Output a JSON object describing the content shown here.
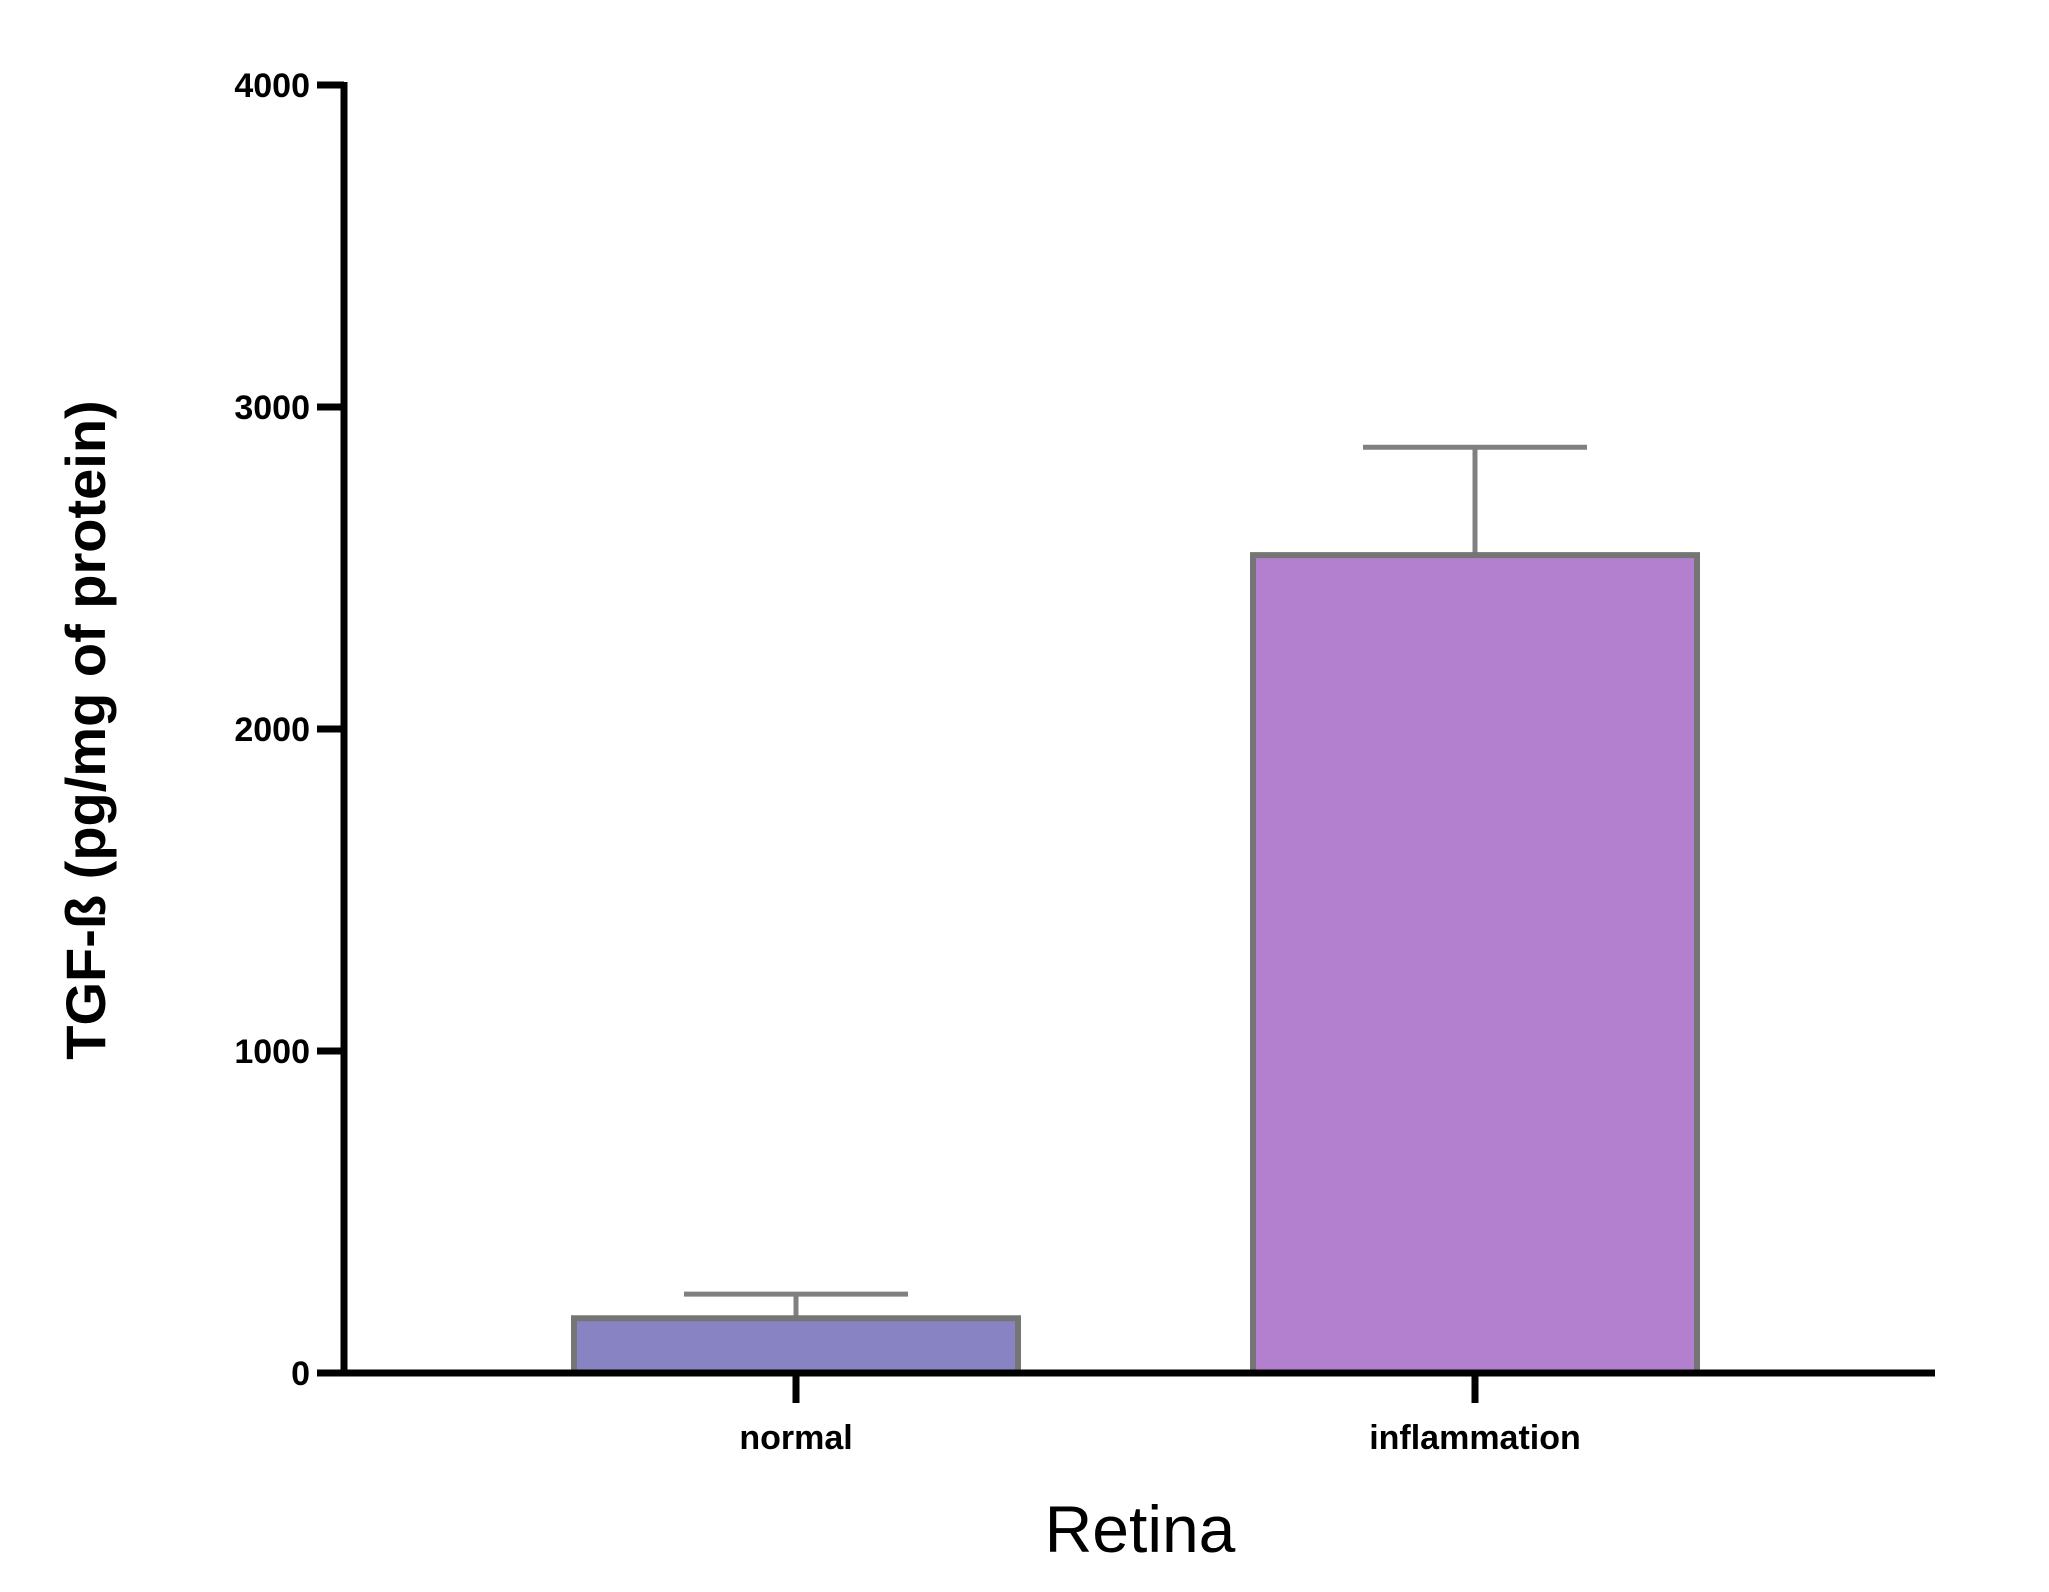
{
  "chart_data": {
    "type": "bar",
    "title": "",
    "xlabel": "Retina",
    "ylabel": "TGF-ß (pg/mg of protein)",
    "categories": [
      "normal",
      "inflammation"
    ],
    "values": [
      170,
      2540
    ],
    "error_upper": [
      245,
      2875
    ],
    "ylim": [
      0,
      4000
    ],
    "yticks": [
      0,
      1000,
      2000,
      3000,
      4000
    ],
    "ytick_labels": [
      "0",
      "1000",
      "2000",
      "3000",
      "4000"
    ],
    "grid": false,
    "legend": "none",
    "colors": {
      "bars": [
        "#8884c4",
        "#b37fcf"
      ],
      "bar_edge": "#757575",
      "error_bar": "#808080",
      "axis": "#000000"
    }
  }
}
